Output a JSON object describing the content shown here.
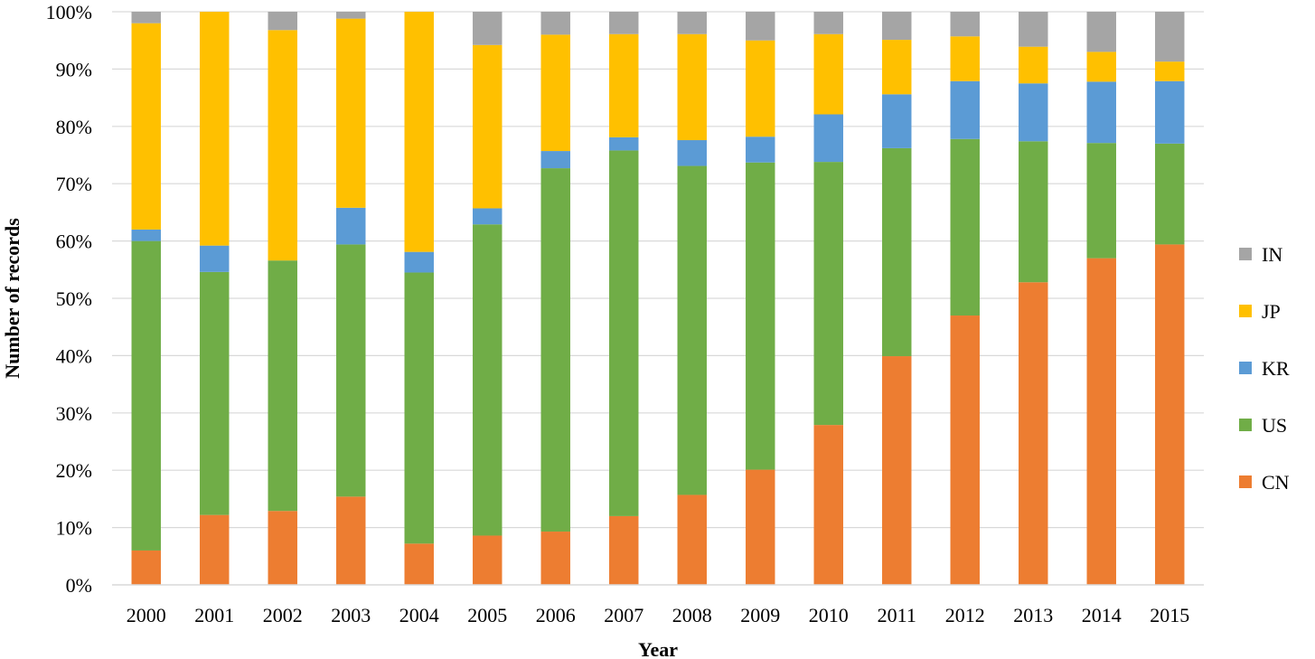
{
  "chart_data": {
    "type": "bar",
    "stacked": true,
    "percent": true,
    "xlabel": "Year",
    "ylabel": "Number of records",
    "ylim": [
      0,
      100
    ],
    "yticks": [
      "0%",
      "10%",
      "20%",
      "30%",
      "40%",
      "50%",
      "60%",
      "70%",
      "80%",
      "90%",
      "100%"
    ],
    "grid": true,
    "legend_position": "right",
    "categories": [
      "2000",
      "2001",
      "2002",
      "2003",
      "2004",
      "2005",
      "2006",
      "2007",
      "2008",
      "2009",
      "2010",
      "2011",
      "2012",
      "2013",
      "2014",
      "2015"
    ],
    "series": [
      {
        "name": "CN",
        "color": "#ED7D31",
        "values": [
          6,
          12.2,
          12.9,
          15.4,
          7.2,
          8.6,
          9.3,
          12,
          15.7,
          20.1,
          27.9,
          39.9,
          47,
          52.8,
          57,
          59.4
        ]
      },
      {
        "name": "US",
        "color": "#70AD47",
        "values": [
          54,
          42.4,
          43.7,
          44,
          47.3,
          54.3,
          63.4,
          63.8,
          57.4,
          53.6,
          45.9,
          36.3,
          30.8,
          24.6,
          20.1,
          17.6
        ]
      },
      {
        "name": "KR",
        "color": "#5B9BD5",
        "values": [
          2,
          4.6,
          0,
          6.4,
          3.6,
          2.8,
          3,
          2.3,
          4.5,
          4.5,
          8.3,
          9.4,
          10.1,
          10.1,
          10.7,
          10.9
        ]
      },
      {
        "name": "JP",
        "color": "#FFC000",
        "values": [
          36,
          40.8,
          40.2,
          33,
          41.9,
          28.5,
          20.3,
          18,
          18.5,
          16.8,
          14,
          9.5,
          7.8,
          6.4,
          5.2,
          3.4
        ]
      },
      {
        "name": "IN",
        "color": "#A5A5A5",
        "values": [
          2,
          0,
          3.2,
          1.2,
          0,
          5.8,
          4,
          3.9,
          3.9,
          5,
          3.9,
          4.9,
          4.3,
          6.1,
          7,
          8.7
        ]
      }
    ],
    "legend_order": [
      "IN",
      "JP",
      "KR",
      "US",
      "CN"
    ]
  }
}
